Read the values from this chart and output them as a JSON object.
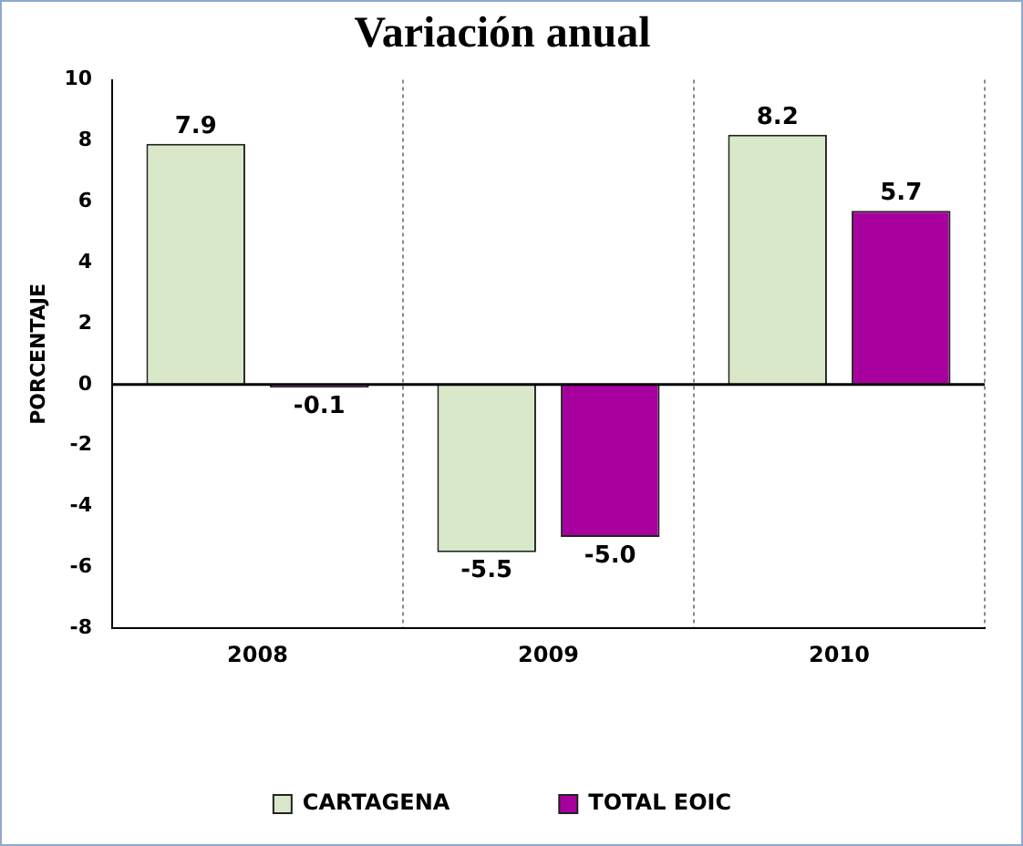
{
  "chart_data": {
    "type": "bar",
    "title": "Variación anual",
    "ylabel": "PORCENTAJE",
    "categories": [
      "2008",
      "2009",
      "2010"
    ],
    "series": [
      {
        "name": "CARTAGENA",
        "color": "#d8e8c8",
        "values": [
          7.9,
          -5.5,
          8.2
        ],
        "value_labels": [
          "7.9",
          "-5.5",
          "8.2"
        ]
      },
      {
        "name": "TOTAL EOIC",
        "color": "#a8009e",
        "values": [
          -0.1,
          -5.0,
          5.7
        ],
        "value_labels": [
          "-0.1",
          "-5.0",
          "5.7"
        ]
      }
    ],
    "ylim": [
      -8,
      10
    ],
    "yticks": [
      -8,
      -6,
      -4,
      -2,
      0,
      2,
      4,
      6,
      8,
      10
    ],
    "grid": "x",
    "legend": "bottom"
  }
}
